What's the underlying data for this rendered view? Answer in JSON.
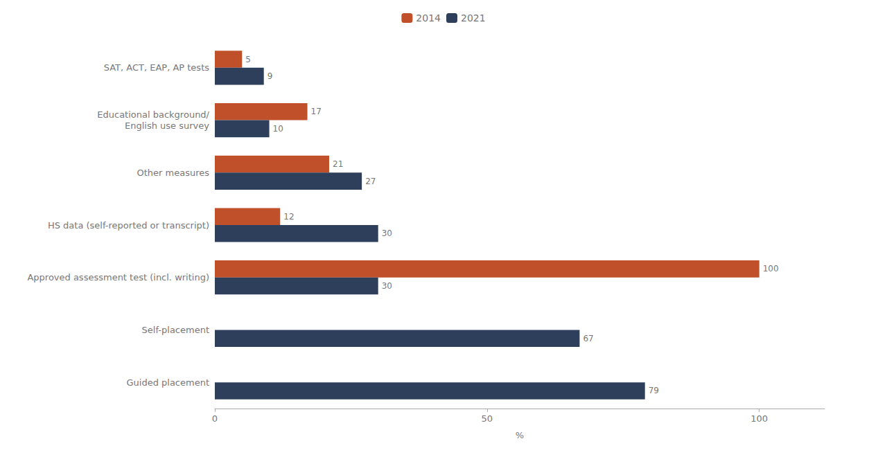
{
  "chart_data": {
    "type": "bar",
    "orientation": "horizontal",
    "categories": [
      "SAT, ACT, EAP, AP tests",
      "Educational background/\nEnglish use survey",
      "Other measures",
      "HS data (self-reported or transcript)",
      "Approved assessment test (incl. writing)",
      "Self-placement",
      "Guided placement"
    ],
    "series": [
      {
        "name": "2014",
        "color": "#C0502A",
        "values": [
          5,
          17,
          21,
          12,
          100,
          null,
          null
        ]
      },
      {
        "name": "2021",
        "color": "#2E3F5C",
        "values": [
          9,
          10,
          27,
          30,
          30,
          67,
          79
        ]
      }
    ],
    "xlabel": "%",
    "xlim": [
      0,
      112
    ],
    "xticks": [
      0,
      50,
      100
    ],
    "grid": false,
    "legend": "top",
    "data_labels": true
  }
}
